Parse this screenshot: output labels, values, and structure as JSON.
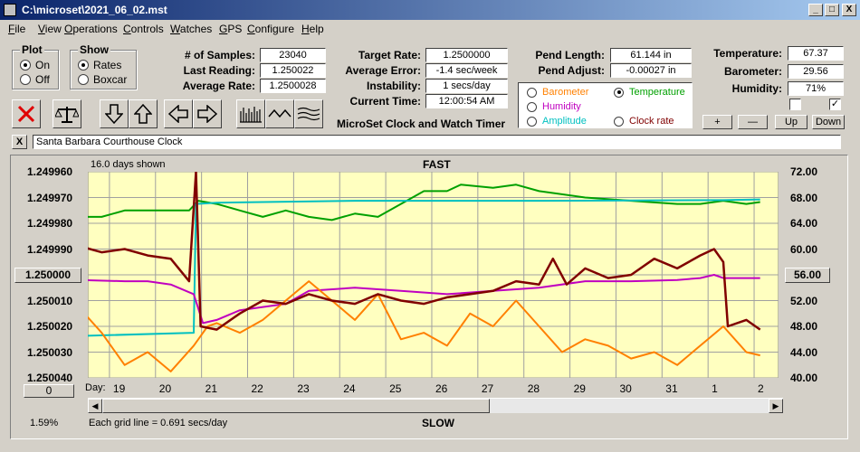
{
  "window": {
    "title": "C:\\microset\\2021_06_02.mst"
  },
  "window_controls": {
    "minimize": "_",
    "maximize": "□",
    "close": "X"
  },
  "menu": [
    "File",
    "View",
    "Operations",
    "Controls",
    "Watches",
    "GPS",
    "Configure",
    "Help"
  ],
  "plot_group": {
    "title": "Plot",
    "options": [
      "On",
      "Off"
    ],
    "selected": "On"
  },
  "show_group": {
    "title": "Show",
    "options": [
      "Rates",
      "Boxcar"
    ],
    "selected": "Rates"
  },
  "stats": {
    "samples_label": "# of Samples:",
    "samples": "23040",
    "last_label": "Last Reading:",
    "last": "1.250022",
    "avg_rate_label": "Average Rate:",
    "avg_rate": "1.2500028"
  },
  "rates": {
    "target_label": "Target Rate:",
    "target": "1.2500000",
    "avg_err_label": "Average Error:",
    "avg_err": "-1.4 sec/week",
    "instab_label": "Instability:",
    "instab": "1 secs/day",
    "time_label": "Current Time:",
    "time": "12:00:54 AM"
  },
  "app_name": "MicroSet Clock and Watch Timer",
  "pend": {
    "length_label": "Pend Length:",
    "length": "61.144 in",
    "adjust_label": "Pend Adjust:",
    "adjust": "-0.00027 in"
  },
  "trace_options": {
    "barometer": "Barometer",
    "temperature": "Temperature",
    "humidity": "Humidity",
    "amplitude": "Amplitude",
    "clock_rate": "Clock rate",
    "selected": "Temperature",
    "colors": {
      "barometer": "#ff8000",
      "temperature": "#00a000",
      "humidity": "#c000c0",
      "amplitude": "#00c0c0",
      "clock_rate": "#800000"
    }
  },
  "env": {
    "temp_label": "Temperature:",
    "temp": "67.37",
    "baro_label": "Barometer:",
    "baro": "29.56",
    "hum_label": "Humidity:",
    "hum": "71%"
  },
  "adjust_buttons": {
    "plus": "+",
    "minus": "—",
    "up": "Up",
    "down": "Down"
  },
  "clock_name": "Santa Barbara Courthouse Clock",
  "clear_button": "X",
  "graph": {
    "days_shown": "16.0 days shown",
    "fast_label": "FAST",
    "slow_label": "SLOW",
    "day_label": "Day:",
    "grid_note": "Each grid line = 0.691 secs/day",
    "left_center_button": "1.250000",
    "right_center_button": "56.00",
    "left_bottom_button": "0",
    "percent": "1.59%",
    "bg_color": "#ffffc0"
  },
  "chart_data": {
    "type": "line",
    "x_label": "Day:",
    "x_ticks": [
      "19",
      "20",
      "21",
      "22",
      "23",
      "24",
      "25",
      "26",
      "27",
      "28",
      "29",
      "30",
      "31",
      "1",
      "2"
    ],
    "y_left_ticks": [
      "1.249960",
      "1.249970",
      "1.249980",
      "1.249990",
      "1.250000",
      "1.250010",
      "1.250020",
      "1.250030",
      "1.250040"
    ],
    "y_right_ticks": [
      "72.00",
      "68.00",
      "64.00",
      "60.00",
      "56.00",
      "52.00",
      "48.00",
      "44.00",
      "40.00"
    ],
    "y_right_range": [
      40,
      72
    ],
    "series": [
      {
        "color": "#00a000",
        "x": [
          18.0,
          18.5,
          19.0,
          19.5,
          20.0,
          20.4,
          20.6,
          21.0,
          21.5,
          22.0,
          22.5,
          23.0,
          23.5,
          24.0,
          24.5,
          25.0,
          25.5,
          26.0,
          26.3,
          27.0,
          27.5,
          28.0,
          29.0,
          30.0,
          31.0,
          31.5,
          32.0,
          32.5,
          32.8
        ],
        "values": [
          65.0,
          65.0,
          66.0,
          66.0,
          66.0,
          66.0,
          67.5,
          67.0,
          66.0,
          65.0,
          66.0,
          65.0,
          64.5,
          65.5,
          65.0,
          67.0,
          69.0,
          69.0,
          70.0,
          69.5,
          70.0,
          69.0,
          68.0,
          67.5,
          67.0,
          67.0,
          67.5,
          67.0,
          67.3
        ]
      },
      {
        "color": "#00c0c0",
        "x": [
          18.0,
          20.5,
          20.55,
          21.0,
          24.0,
          28.0,
          32.0,
          32.8
        ],
        "values": [
          46.5,
          47.0,
          67.0,
          67.2,
          67.5,
          67.5,
          67.6,
          67.7
        ]
      },
      {
        "color": "#c000c0",
        "x": [
          18.0,
          19.0,
          19.5,
          20.0,
          20.5,
          20.7,
          21.0,
          21.5,
          22.0,
          22.5,
          23.0,
          24.0,
          25.0,
          26.0,
          27.0,
          28.0,
          29.0,
          30.0,
          31.0,
          31.5,
          31.8,
          32.0,
          32.8
        ],
        "values": [
          55.2,
          55.0,
          55.0,
          54.5,
          53.0,
          48.5,
          49.0,
          50.5,
          51.0,
          51.5,
          53.5,
          54.0,
          53.5,
          53.0,
          53.5,
          54.0,
          55.0,
          55.0,
          55.2,
          55.5,
          56.0,
          55.5,
          55.5
        ]
      },
      {
        "color": "#ff8000",
        "x": [
          18.0,
          18.5,
          19.0,
          19.5,
          20.0,
          20.5,
          20.8,
          21.0,
          21.5,
          22.0,
          22.5,
          23.0,
          23.5,
          24.0,
          24.5,
          25.0,
          25.5,
          26.0,
          26.5,
          27.0,
          27.5,
          28.0,
          28.5,
          29.0,
          29.5,
          30.0,
          30.5,
          31.0,
          31.5,
          32.0,
          32.5,
          32.8
        ],
        "values": [
          51.0,
          47.0,
          42.0,
          44.0,
          41.0,
          45.0,
          48.0,
          48.5,
          47.0,
          49.0,
          52.0,
          55.0,
          52.0,
          49.0,
          53.0,
          46.0,
          47.0,
          45.0,
          50.0,
          48.0,
          52.0,
          48.0,
          44.0,
          46.0,
          45.0,
          43.0,
          44.0,
          42.0,
          45.0,
          48.0,
          44.0,
          43.5
        ]
      },
      {
        "color": "#800000",
        "x": [
          18.0,
          18.5,
          19.0,
          19.5,
          20.0,
          20.4,
          20.55,
          20.65,
          21.0,
          21.5,
          22.0,
          22.5,
          23.0,
          23.5,
          24.0,
          24.5,
          25.0,
          25.5,
          26.0,
          26.5,
          27.0,
          27.5,
          28.0,
          28.3,
          28.6,
          29.0,
          29.5,
          30.0,
          30.5,
          31.0,
          31.5,
          31.8,
          32.0,
          32.1,
          32.5,
          32.8
        ],
        "values": [
          60.5,
          59.5,
          60.0,
          59.0,
          58.5,
          55.0,
          72.0,
          48.0,
          47.5,
          50.0,
          52.0,
          51.5,
          53.0,
          52.0,
          51.5,
          53.0,
          52.0,
          51.5,
          52.5,
          53.0,
          53.5,
          55.0,
          54.5,
          58.5,
          54.5,
          57.0,
          55.5,
          56.0,
          58.5,
          57.0,
          59.0,
          60.0,
          58.0,
          48.0,
          49.0,
          47.5
        ]
      }
    ]
  },
  "icons": {
    "toolbar": [
      "stop-icon",
      "balance-icon",
      "arrow-down-icon",
      "arrow-up-icon",
      "arrow-left-icon",
      "arrow-right-icon",
      "comb-wave-icon",
      "sine-wave-icon",
      "triangle-wave-icon"
    ]
  },
  "checkboxes": {
    "left": false,
    "right": true,
    "right_mark": "✓"
  }
}
